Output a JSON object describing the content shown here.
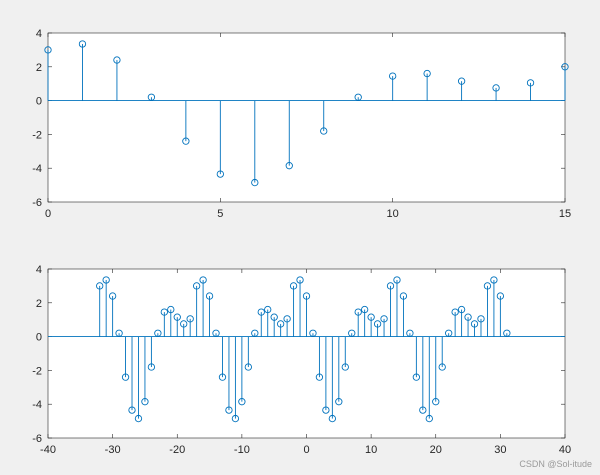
{
  "chart_data": [
    {
      "type": "stem",
      "xlim": [
        0,
        15
      ],
      "ylim": [
        -6,
        4
      ],
      "xticks": [
        0,
        5,
        10,
        15
      ],
      "yticks": [
        -6,
        -4,
        -2,
        0,
        2,
        4
      ],
      "color": "#0072bd",
      "x": [
        0,
        1,
        2,
        3,
        4,
        5,
        6,
        7,
        8,
        9,
        10,
        11,
        12,
        13,
        14,
        15
      ],
      "y": [
        3.0,
        3.35,
        2.4,
        0.2,
        -2.4,
        -4.35,
        -4.85,
        -3.85,
        -1.8,
        0.2,
        1.45,
        1.6,
        1.15,
        0.75,
        1.05,
        2.0
      ]
    },
    {
      "type": "stem",
      "xlim": [
        -40,
        40
      ],
      "ylim": [
        -6,
        4
      ],
      "xticks": [
        -40,
        -30,
        -20,
        -10,
        0,
        10,
        20,
        30,
        40
      ],
      "yticks": [
        -6,
        -4,
        -2,
        0,
        2,
        4
      ],
      "color": "#0072bd",
      "x": [
        -32,
        -31,
        -30,
        -29,
        -28,
        -27,
        -26,
        -25,
        -24,
        -23,
        -22,
        -21,
        -20,
        -19,
        -18,
        -17,
        -16,
        -15,
        -14,
        -13,
        -12,
        -11,
        -10,
        -9,
        -8,
        -7,
        -6,
        -5,
        -4,
        -3,
        -2,
        -1,
        0,
        1,
        2,
        3,
        4,
        5,
        6,
        7,
        8,
        9,
        10,
        11,
        12,
        13,
        14,
        15,
        16,
        17,
        18,
        19,
        20,
        21,
        22,
        23,
        24,
        25,
        26,
        27,
        28,
        29,
        30,
        31
      ],
      "y": [
        3.0,
        3.35,
        2.4,
        0.2,
        -2.4,
        -4.35,
        -4.85,
        -3.85,
        -1.8,
        0.2,
        1.45,
        1.6,
        1.15,
        0.75,
        1.05,
        3.0,
        3.35,
        2.4,
        0.2,
        -2.4,
        -4.35,
        -4.85,
        -3.85,
        -1.8,
        0.2,
        1.45,
        1.6,
        1.15,
        0.75,
        1.05,
        3.0,
        3.35,
        2.4,
        0.2,
        -2.4,
        -4.35,
        -4.85,
        -3.85,
        -1.8,
        0.2,
        1.45,
        1.6,
        1.15,
        0.75,
        1.05,
        3.0,
        3.35,
        2.4,
        0.2,
        -2.4,
        -4.35,
        -4.85,
        -3.85,
        -1.8,
        0.2,
        1.45,
        1.6,
        1.15,
        0.75,
        1.05,
        3.0,
        3.35,
        2.4,
        0.2
      ]
    }
  ],
  "watermark": "CSDN @Sol-itude"
}
